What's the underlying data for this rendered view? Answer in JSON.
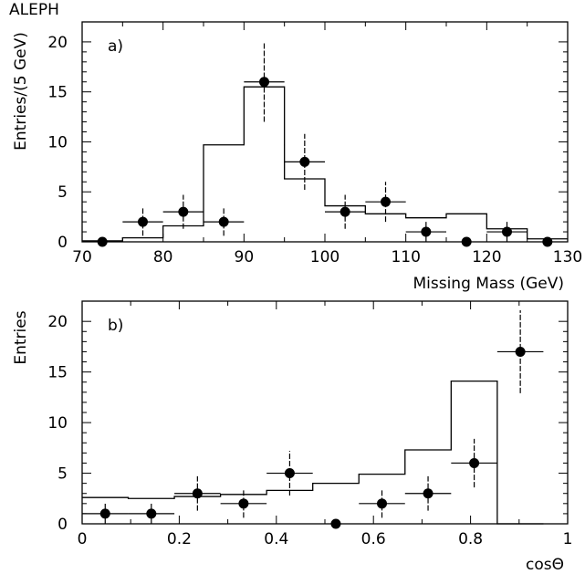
{
  "experiment_label": "ALEPH",
  "chart_data": [
    {
      "type": "histogram_with_points",
      "panel_label": "a)",
      "xlabel": "Missing Mass (GeV)",
      "ylabel": "Entries/(5 GeV)",
      "xlim": [
        70,
        130
      ],
      "ylim": [
        0,
        22
      ],
      "x_ticks": [
        70,
        80,
        90,
        100,
        110,
        120,
        130
      ],
      "y_ticks": [
        0,
        5,
        10,
        15,
        20
      ],
      "histogram": {
        "bin_edges": [
          70,
          75,
          80,
          85,
          90,
          95,
          100,
          105,
          110,
          115,
          120,
          125,
          130
        ],
        "values": [
          0.1,
          0.4,
          1.6,
          9.7,
          15.5,
          6.3,
          3.6,
          2.8,
          2.4,
          2.8,
          1.3,
          0.3
        ]
      },
      "points": [
        {
          "x": 72.5,
          "y": 0,
          "xerr": 0,
          "yerr": 0
        },
        {
          "x": 77.5,
          "y": 2,
          "xerr": 2.5,
          "yerr": 1.4
        },
        {
          "x": 82.5,
          "y": 3,
          "xerr": 2.5,
          "yerr": 1.7
        },
        {
          "x": 87.5,
          "y": 2,
          "xerr": 2.5,
          "yerr": 1.4
        },
        {
          "x": 92.5,
          "y": 16,
          "xerr": 2.5,
          "yerr": 4.0
        },
        {
          "x": 97.5,
          "y": 8,
          "xerr": 2.5,
          "yerr": 2.8
        },
        {
          "x": 102.5,
          "y": 3,
          "xerr": 2.5,
          "yerr": 1.7
        },
        {
          "x": 107.5,
          "y": 4,
          "xerr": 2.5,
          "yerr": 2.0
        },
        {
          "x": 112.5,
          "y": 1,
          "xerr": 2.5,
          "yerr": 1.0
        },
        {
          "x": 117.5,
          "y": 0,
          "xerr": 0,
          "yerr": 0
        },
        {
          "x": 122.5,
          "y": 1,
          "xerr": 2.5,
          "yerr": 1.0
        },
        {
          "x": 127.5,
          "y": 0,
          "xerr": 0,
          "yerr": 0
        }
      ]
    },
    {
      "type": "histogram_with_points",
      "panel_label": "b)",
      "xlabel": "cosΘ",
      "ylabel": "Entries",
      "xlim": [
        0,
        1
      ],
      "ylim": [
        0,
        22
      ],
      "x_ticks": [
        0,
        0.2,
        0.4,
        0.6,
        0.8,
        1
      ],
      "y_ticks": [
        0,
        5,
        10,
        15,
        20
      ],
      "histogram": {
        "bin_edges": [
          0,
          0.095,
          0.19,
          0.285,
          0.38,
          0.475,
          0.57,
          0.665,
          0.76,
          0.855,
          0.95
        ],
        "values": [
          2.6,
          2.5,
          2.7,
          2.9,
          3.3,
          4.0,
          4.9,
          7.3,
          14.1,
          0
        ]
      },
      "points": [
        {
          "x": 0.0475,
          "y": 1,
          "xerr": 0.0475,
          "yerr": 1.0
        },
        {
          "x": 0.1425,
          "y": 1,
          "xerr": 0.0475,
          "yerr": 1.0
        },
        {
          "x": 0.2375,
          "y": 3,
          "xerr": 0.0475,
          "yerr": 1.7
        },
        {
          "x": 0.3325,
          "y": 2,
          "xerr": 0.0475,
          "yerr": 1.4
        },
        {
          "x": 0.4275,
          "y": 5,
          "xerr": 0.0475,
          "yerr": 2.2
        },
        {
          "x": 0.5225,
          "y": 0,
          "xerr": 0,
          "yerr": 0
        },
        {
          "x": 0.6175,
          "y": 2,
          "xerr": 0.0475,
          "yerr": 1.4
        },
        {
          "x": 0.7125,
          "y": 3,
          "xerr": 0.0475,
          "yerr": 1.7
        },
        {
          "x": 0.8075,
          "y": 6,
          "xerr": 0.0475,
          "yerr": 2.4
        },
        {
          "x": 0.9025,
          "y": 17,
          "xerr": 0.0475,
          "yerr": 4.1
        }
      ]
    }
  ]
}
